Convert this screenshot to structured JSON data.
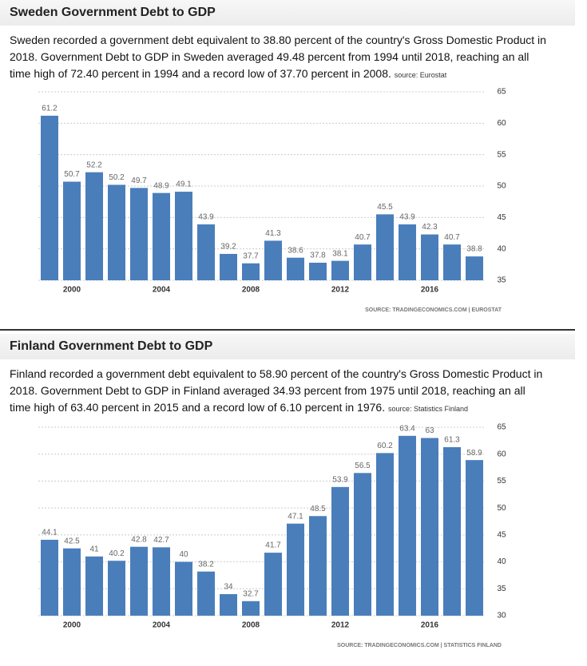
{
  "chart_data": [
    {
      "type": "bar",
      "title": "Sweden Government Debt to GDP",
      "description": "Sweden recorded a government debt equivalent to 38.80 percent of the country's Gross Domestic Product in 2018. Government Debt to GDP in Sweden averaged 49.48 percent from 1994 until 2018, reaching an all time high of 72.40 percent in 1994 and a record low of 37.70 percent in 2008.",
      "source": "source: Eurostat",
      "footer": "SOURCE: TRADINGECONOMICS.COM | EUROSTAT",
      "categories": [
        null,
        "2000",
        null,
        null,
        null,
        "2004",
        null,
        null,
        null,
        "2008",
        null,
        null,
        null,
        "2012",
        null,
        null,
        null,
        "2016",
        null,
        null
      ],
      "values": [
        61.2,
        50.7,
        52.2,
        50.2,
        49.7,
        48.9,
        49.1,
        43.9,
        39.2,
        37.7,
        41.3,
        38.6,
        37.8,
        38.1,
        40.7,
        45.5,
        43.9,
        42.3,
        40.7,
        38.8
      ],
      "color": "#4a7ebb",
      "ylim": [
        35,
        65
      ],
      "yticks": [
        35,
        40,
        45,
        50,
        55,
        60,
        65
      ],
      "grid": true
    },
    {
      "type": "bar",
      "title": "Finland Government Debt to GDP",
      "description": "Finland recorded a government debt equivalent to 58.90 percent of the country's Gross Domestic Product in 2018. Government Debt to GDP in Finland averaged 34.93 percent from 1975 until 2018, reaching an all time high of 63.40 percent in 2015 and a record low of 6.10 percent in 1976.",
      "source": "source: Statistics Finland",
      "footer": "SOURCE: TRADINGECONOMICS.COM | STATISTICS FINLAND",
      "categories": [
        null,
        "2000",
        null,
        null,
        null,
        "2004",
        null,
        null,
        null,
        "2008",
        null,
        null,
        null,
        "2012",
        null,
        null,
        null,
        "2016",
        null,
        null
      ],
      "values": [
        44.1,
        42.5,
        41,
        40.2,
        42.8,
        42.7,
        40,
        38.2,
        34,
        32.7,
        41.7,
        47.1,
        48.5,
        53.9,
        56.5,
        60.2,
        63.4,
        63,
        61.3,
        58.9
      ],
      "color": "#4a7ebb",
      "ylim": [
        30,
        65
      ],
      "yticks": [
        30,
        35,
        40,
        45,
        50,
        55,
        60,
        65
      ],
      "grid": true
    }
  ]
}
